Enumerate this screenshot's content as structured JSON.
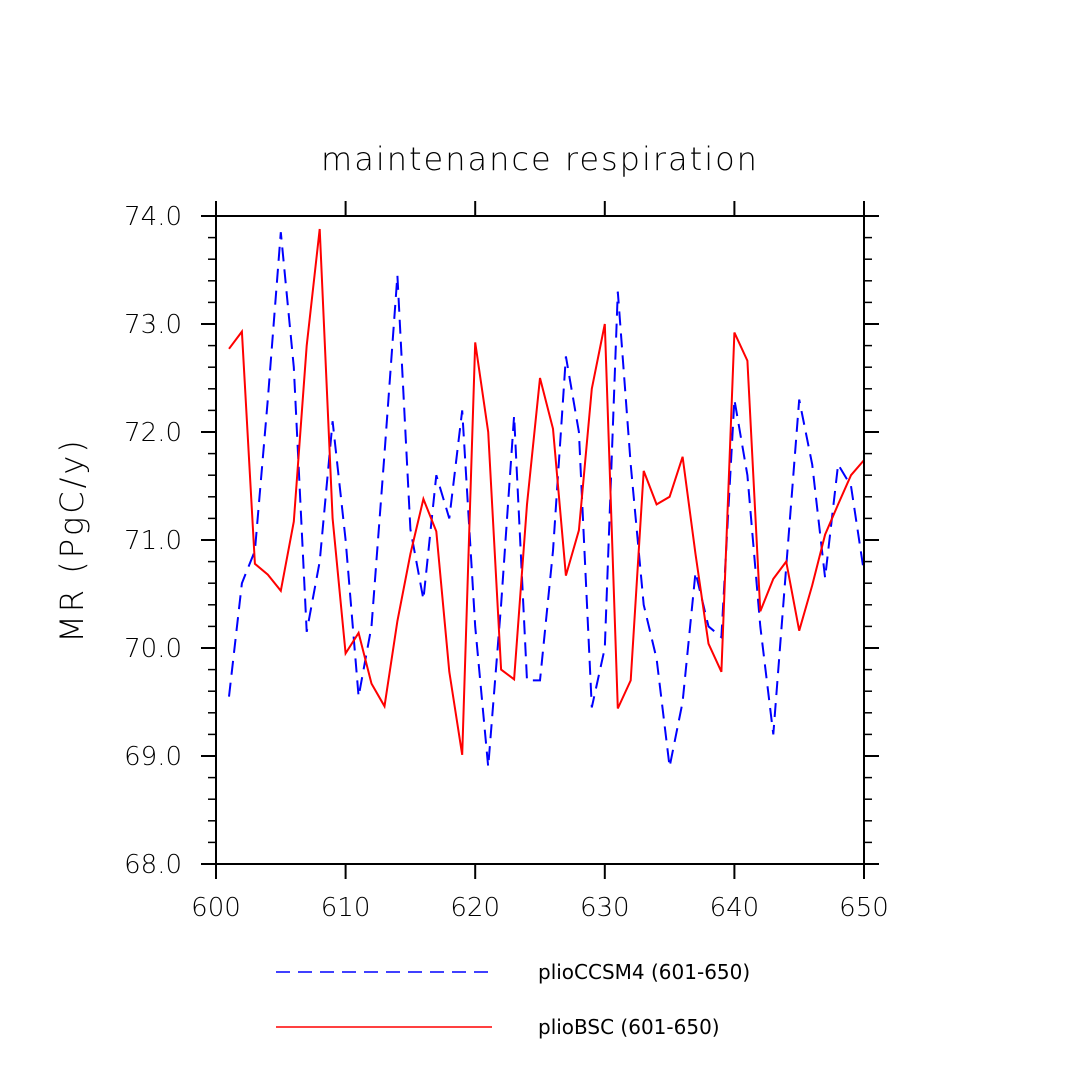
{
  "chart_data": {
    "type": "line",
    "title": "maintenance respiration",
    "xlabel": "",
    "ylabel": "MR  (PgC/y)",
    "xlim": [
      600,
      650
    ],
    "ylim": [
      68.0,
      74.0
    ],
    "x_ticks": [
      600,
      610,
      620,
      630,
      640,
      650
    ],
    "y_ticks": [
      "68.0",
      "69.0",
      "70.0",
      "71.0",
      "72.0",
      "73.0",
      "74.0"
    ],
    "x": [
      601,
      602,
      603,
      604,
      605,
      606,
      607,
      608,
      609,
      610,
      611,
      612,
      613,
      614,
      615,
      616,
      617,
      618,
      619,
      620,
      621,
      622,
      623,
      624,
      625,
      626,
      627,
      628,
      629,
      630,
      631,
      632,
      633,
      634,
      635,
      636,
      637,
      638,
      639,
      640,
      641,
      642,
      643,
      644,
      645,
      646,
      647,
      648,
      649,
      650
    ],
    "series": [
      {
        "name": "plioCCSM4 (601-650)",
        "color": "#0000ff",
        "style": "dashed",
        "values": [
          69.55,
          70.6,
          70.9,
          72.3,
          73.85,
          72.6,
          70.15,
          70.8,
          72.1,
          71.0,
          69.55,
          70.2,
          71.8,
          73.45,
          71.1,
          70.45,
          71.6,
          71.2,
          72.2,
          70.2,
          68.9,
          70.4,
          72.15,
          69.7,
          69.7,
          70.9,
          72.7,
          72.0,
          69.45,
          70.0,
          73.3,
          71.7,
          70.4,
          69.9,
          68.9,
          69.5,
          70.7,
          70.2,
          70.1,
          72.3,
          71.6,
          70.2,
          69.2,
          70.75,
          72.3,
          71.7,
          70.65,
          71.7,
          71.5,
          70.7
        ]
      },
      {
        "name": "plioBSC (601-650)",
        "color": "#ff0000",
        "style": "solid",
        "values": [
          72.77,
          72.93,
          70.78,
          70.68,
          70.53,
          71.17,
          72.8,
          73.88,
          71.2,
          69.95,
          70.14,
          69.67,
          69.46,
          70.25,
          70.87,
          71.38,
          71.08,
          69.78,
          69.01,
          72.83,
          72.0,
          69.8,
          69.71,
          71.33,
          72.5,
          72.03,
          70.67,
          71.09,
          72.4,
          73.0,
          69.44,
          69.7,
          71.64,
          71.33,
          71.4,
          71.77,
          70.87,
          70.04,
          69.78,
          72.92,
          72.66,
          70.34,
          70.64,
          70.8,
          70.16,
          70.58,
          71.05,
          71.33,
          71.6,
          71.74
        ]
      }
    ]
  }
}
